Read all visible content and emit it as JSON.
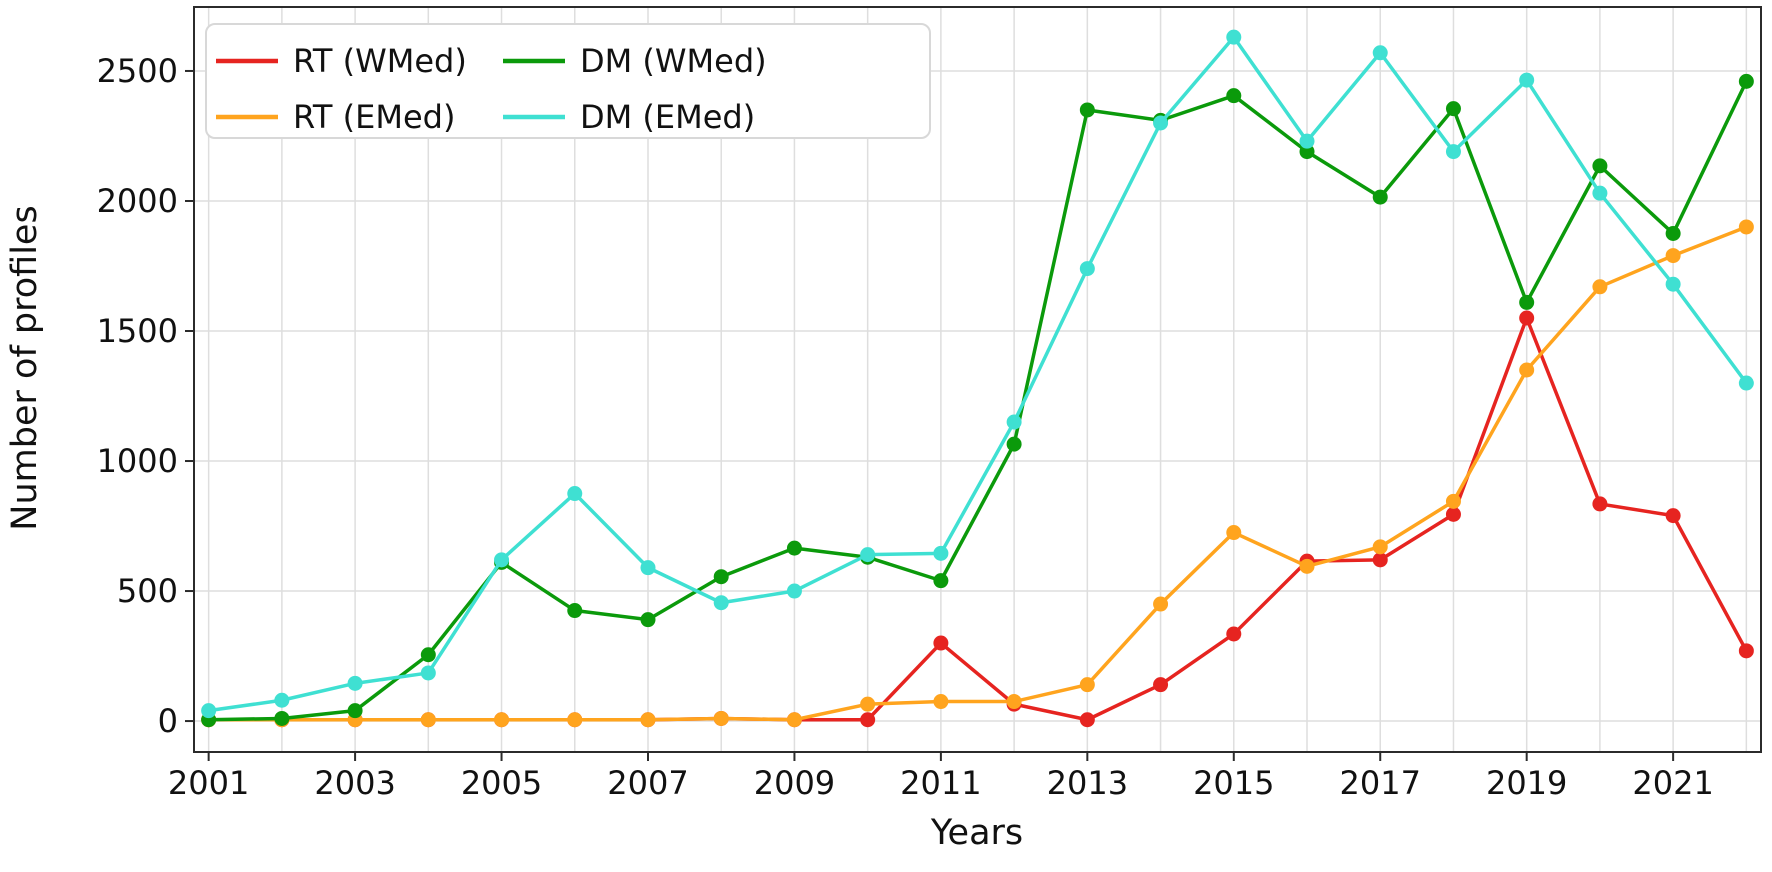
{
  "chart_data": {
    "type": "line",
    "title": "",
    "xlabel": "Years",
    "ylabel": "Number of profiles",
    "x": [
      2001,
      2002,
      2003,
      2004,
      2005,
      2006,
      2007,
      2008,
      2009,
      2010,
      2011,
      2012,
      2013,
      2014,
      2015,
      2016,
      2017,
      2018,
      2019,
      2020,
      2021,
      2022
    ],
    "x_tick_labels": [
      "2001",
      "2003",
      "2005",
      "2007",
      "2009",
      "2011",
      "2013",
      "2015",
      "2017",
      "2019",
      "2021"
    ],
    "x_tick_years": [
      2001,
      2003,
      2005,
      2007,
      2009,
      2011,
      2013,
      2015,
      2017,
      2019,
      2021
    ],
    "y_ticks": [
      0,
      500,
      1000,
      1500,
      2000,
      2500
    ],
    "xlim": [
      2000.8,
      2022.2
    ],
    "ylim": [
      -119,
      2746
    ],
    "grid": true,
    "legend_position": "upper-left",
    "legend_columns": 2,
    "series": [
      {
        "name": "RT (WMed)",
        "color": "#e62420",
        "values": [
          5,
          5,
          5,
          5,
          5,
          5,
          5,
          10,
          5,
          5,
          300,
          65,
          5,
          140,
          335,
          615,
          620,
          795,
          1550,
          835,
          790,
          270
        ]
      },
      {
        "name": "RT (EMed)",
        "color": "#ffa41e",
        "values": [
          5,
          5,
          5,
          5,
          5,
          5,
          5,
          10,
          5,
          65,
          75,
          75,
          140,
          450,
          725,
          595,
          670,
          845,
          1350,
          1670,
          1790,
          1900
        ]
      },
      {
        "name": "DM (WMed)",
        "color": "#0b9a0b",
        "values": [
          5,
          10,
          40,
          255,
          610,
          425,
          390,
          555,
          665,
          630,
          540,
          1065,
          2350,
          2310,
          2405,
          2190,
          2015,
          2355,
          1610,
          2135,
          1875,
          2460
        ]
      },
      {
        "name": "DM (EMed)",
        "color": "#3fe0d2",
        "values": [
          40,
          80,
          145,
          185,
          620,
          875,
          590,
          455,
          500,
          640,
          645,
          1150,
          1740,
          2300,
          2630,
          2230,
          2570,
          2190,
          2465,
          2030,
          1680,
          1300
        ]
      }
    ],
    "style": {
      "grid_color": "#dedede",
      "spine_color": "#2b2b2b",
      "background": "#ffffff",
      "legend_border": "#d8d8d8"
    }
  }
}
